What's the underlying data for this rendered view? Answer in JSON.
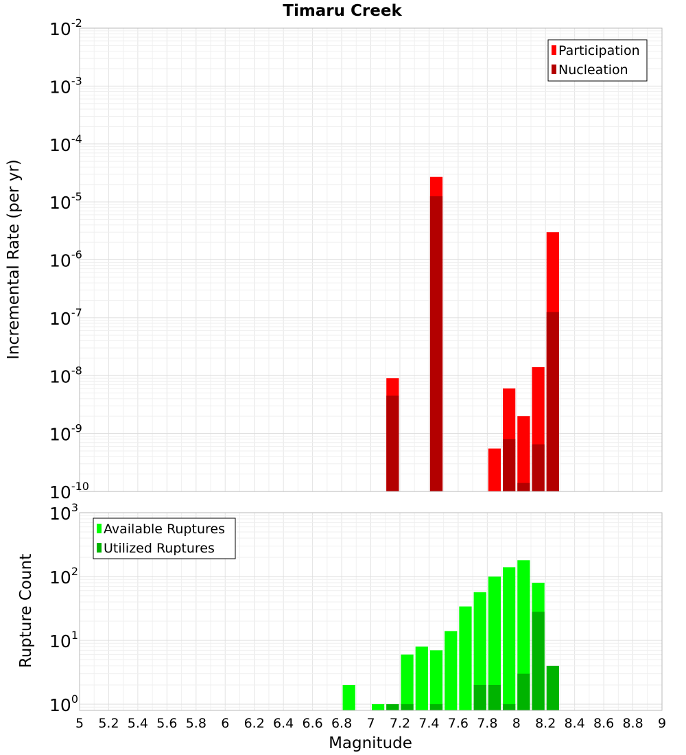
{
  "chart_data": [
    {
      "type": "bar",
      "title": "Timaru Creek",
      "ylabel": "Incremental Rate (per yr)",
      "yscale": "log",
      "ylim": [
        1e-10,
        0.01
      ],
      "xlim": [
        5,
        9
      ],
      "bin_width": 0.1,
      "grid": true,
      "legend_position": "top-right",
      "y_ticks": [
        {
          "base": "10",
          "exp": "-2",
          "value": 0.01
        },
        {
          "base": "10",
          "exp": "-3",
          "value": 0.001
        },
        {
          "base": "10",
          "exp": "-4",
          "value": 0.0001
        },
        {
          "base": "10",
          "exp": "-5",
          "value": 1e-05
        },
        {
          "base": "10",
          "exp": "-6",
          "value": 1e-06
        },
        {
          "base": "10",
          "exp": "-7",
          "value": 1e-07
        },
        {
          "base": "10",
          "exp": "-8",
          "value": 1e-08
        },
        {
          "base": "10",
          "exp": "-9",
          "value": 1e-09
        },
        {
          "base": "10",
          "exp": "-10",
          "value": 1e-10
        }
      ],
      "series": [
        {
          "name": "Participation",
          "color": "#ff0000",
          "x": [
            7.15,
            7.45,
            7.85,
            7.95,
            8.05,
            8.15,
            8.25
          ],
          "values": [
            9e-09,
            2.7e-05,
            5.5e-10,
            6e-09,
            2e-09,
            1.4e-08,
            3e-06
          ]
        },
        {
          "name": "Nucleation",
          "color": "#b30000",
          "x": [
            7.15,
            7.45,
            7.95,
            8.05,
            8.15,
            8.25
          ],
          "values": [
            4.5e-09,
            1.25e-05,
            8e-10,
            1.4e-10,
            6.5e-10,
            1.25e-07
          ]
        }
      ]
    },
    {
      "type": "bar",
      "xlabel": "Magnitude",
      "ylabel": "Rupture Count",
      "yscale": "log",
      "ylim": [
        0.8,
        1000
      ],
      "xlim": [
        5,
        9
      ],
      "bin_width": 0.1,
      "grid": true,
      "legend_position": "top-left",
      "y_ticks": [
        {
          "base": "10",
          "exp": "3",
          "value": 1000
        },
        {
          "base": "10",
          "exp": "2",
          "value": 100
        },
        {
          "base": "10",
          "exp": "1",
          "value": 10
        },
        {
          "base": "10",
          "exp": "0",
          "value": 1
        }
      ],
      "x_tick_labels": [
        "5",
        "5.2",
        "5.4",
        "5.6",
        "5.8",
        "6",
        "6.2",
        "6.4",
        "6.6",
        "6.8",
        "7",
        "7.2",
        "7.4",
        "7.6",
        "7.8",
        "8",
        "8.2",
        "8.4",
        "8.6",
        "8.8",
        "9"
      ],
      "series": [
        {
          "name": "Available Ruptures",
          "color": "#00ff00",
          "x": [
            6.85,
            7.05,
            7.15,
            7.25,
            7.35,
            7.45,
            7.55,
            7.65,
            7.75,
            7.85,
            7.95,
            8.05,
            8.15
          ],
          "values": [
            2,
            1,
            1,
            6,
            8,
            7,
            14,
            34,
            57,
            100,
            140,
            180,
            80
          ]
        },
        {
          "name": "Utilized Ruptures",
          "color": "#00b300",
          "x": [
            7.15,
            7.25,
            7.45,
            7.75,
            7.85,
            7.95,
            8.05,
            8.15,
            8.25
          ],
          "values": [
            1,
            1,
            1,
            2,
            2,
            1,
            3,
            28,
            4
          ]
        }
      ]
    }
  ]
}
